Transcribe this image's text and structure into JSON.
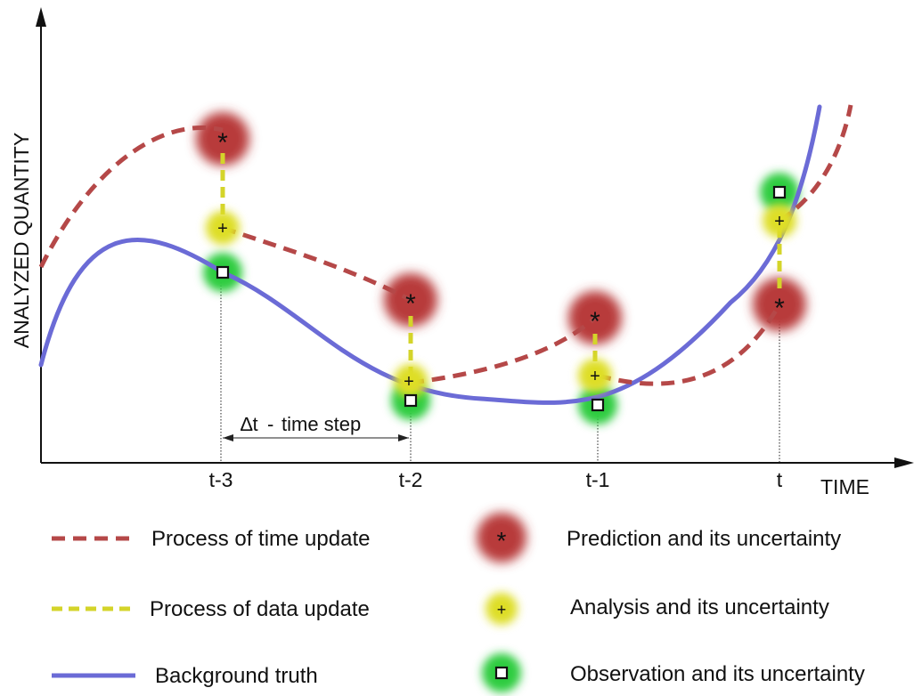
{
  "axes": {
    "y_label": "ANALYZED QUANTITY",
    "x_label": "TIME"
  },
  "ticks": [
    "t-3",
    "t-2",
    "t-1",
    "t"
  ],
  "annotation": {
    "delta_symbol": "∆t",
    "dash": "-",
    "text": "time step"
  },
  "markers": {
    "prediction_symbol": "*",
    "analysis_symbol": "+"
  },
  "legend": {
    "time_update": "Process of time update",
    "data_update": "Process of data update",
    "truth": "Background truth",
    "prediction": "Prediction and its uncertainty",
    "analysis": "Analysis and its uncertainty",
    "observation": "Observation and its uncertainty"
  },
  "colors": {
    "prediction": "#b83a3a",
    "analysis": "#dede28",
    "observation": "#2ecc40",
    "truth_line": "#6b6bd6",
    "time_update_line": "#b54848",
    "data_update_line": "#d4d42a"
  }
}
